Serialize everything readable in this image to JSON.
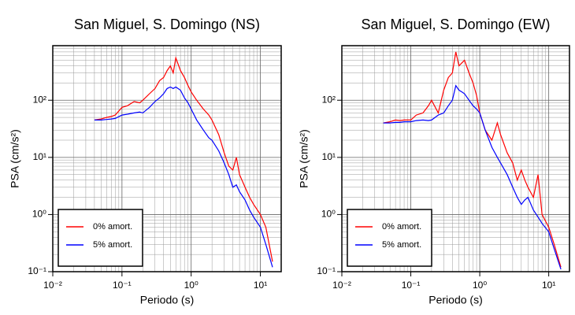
{
  "chart_data": [
    {
      "type": "line",
      "title": "San Miguel, S. Domingo (NS)",
      "x_label": "Periodo (s)",
      "y_label": "PSA (cm/s²)",
      "log_x": true,
      "log_y": true,
      "grid": true,
      "legend": "lower left",
      "xlim": [
        0.01,
        20
      ],
      "ylim": [
        0.1,
        900
      ],
      "xticks": [
        {
          "value": 0.01,
          "label": "10⁻²"
        },
        {
          "value": 0.1,
          "label": "10⁻¹"
        },
        {
          "value": 1,
          "label": "10⁰"
        },
        {
          "value": 10,
          "label": "10¹"
        }
      ],
      "yticks": [
        {
          "value": 0.1,
          "label": "10⁻¹"
        },
        {
          "value": 1,
          "label": "10⁰"
        },
        {
          "value": 10,
          "label": "10¹"
        },
        {
          "value": 100,
          "label": "10²"
        }
      ],
      "xminorticks": [
        0.02,
        0.03,
        0.04,
        0.05,
        0.06,
        0.07,
        0.08,
        0.09,
        0.2,
        0.3,
        0.4,
        0.5,
        0.6,
        0.7,
        0.8,
        0.9,
        2,
        3,
        4,
        5,
        6,
        7,
        8,
        9
      ],
      "yminorticks": [
        0.2,
        0.3,
        0.4,
        0.5,
        0.6,
        0.7,
        0.8,
        0.9,
        2,
        3,
        4,
        5,
        6,
        7,
        8,
        9,
        20,
        30,
        40,
        50,
        60,
        70,
        80,
        90,
        200,
        300,
        400,
        500,
        600,
        700,
        800
      ],
      "x": [
        0.04,
        0.05,
        0.06,
        0.07,
        0.08,
        0.1,
        0.12,
        0.15,
        0.18,
        0.2,
        0.25,
        0.3,
        0.35,
        0.4,
        0.45,
        0.5,
        0.55,
        0.6,
        0.7,
        0.8,
        0.9,
        1.0,
        1.2,
        1.5,
        1.8,
        2,
        2.5,
        3,
        3.5,
        4,
        4.5,
        5,
        6,
        7,
        8,
        10,
        12,
        15
      ],
      "series": [
        {
          "name": "0% amort.",
          "color": "#ff0000",
          "values": [
            45,
            47,
            50,
            52,
            55,
            75,
            80,
            95,
            90,
            100,
            130,
            160,
            220,
            250,
            330,
            400,
            300,
            550,
            330,
            250,
            180,
            140,
            100,
            70,
            55,
            45,
            25,
            12,
            7,
            6,
            10,
            5,
            3,
            2,
            1.5,
            1.0,
            0.6,
            0.15
          ]
        },
        {
          "name": "5% amort.",
          "color": "#0000ff",
          "values": [
            45,
            45,
            46,
            47,
            48,
            55,
            57,
            60,
            62,
            60,
            75,
            95,
            110,
            130,
            160,
            170,
            160,
            170,
            150,
            110,
            90,
            70,
            45,
            30,
            22,
            20,
            13,
            8,
            5,
            3,
            3.3,
            2.5,
            1.8,
            1.2,
            0.9,
            0.6,
            0.3,
            0.12
          ]
        }
      ]
    },
    {
      "type": "line",
      "title": "San Miguel, S. Domingo (EW)",
      "x_label": "Periodo (s)",
      "y_label": "PSA (cm/s²)",
      "log_x": true,
      "log_y": true,
      "grid": true,
      "legend": "lower left",
      "xlim": [
        0.01,
        20
      ],
      "ylim": [
        0.1,
        900
      ],
      "xticks": [
        {
          "value": 0.01,
          "label": "10⁻²"
        },
        {
          "value": 0.1,
          "label": "10⁻¹"
        },
        {
          "value": 1,
          "label": "10⁰"
        },
        {
          "value": 10,
          "label": "10¹"
        }
      ],
      "yticks": [
        {
          "value": 0.1,
          "label": "10⁻¹"
        },
        {
          "value": 1,
          "label": "10⁰"
        },
        {
          "value": 10,
          "label": "10¹"
        },
        {
          "value": 100,
          "label": "10²"
        }
      ],
      "xminorticks": [
        0.02,
        0.03,
        0.04,
        0.05,
        0.06,
        0.07,
        0.08,
        0.09,
        0.2,
        0.3,
        0.4,
        0.5,
        0.6,
        0.7,
        0.8,
        0.9,
        2,
        3,
        4,
        5,
        6,
        7,
        8,
        9
      ],
      "yminorticks": [
        0.2,
        0.3,
        0.4,
        0.5,
        0.6,
        0.7,
        0.8,
        0.9,
        2,
        3,
        4,
        5,
        6,
        7,
        8,
        9,
        20,
        30,
        40,
        50,
        60,
        70,
        80,
        90,
        200,
        300,
        400,
        500,
        600,
        700,
        800
      ],
      "x": [
        0.04,
        0.05,
        0.06,
        0.07,
        0.08,
        0.1,
        0.12,
        0.15,
        0.18,
        0.2,
        0.25,
        0.3,
        0.35,
        0.4,
        0.45,
        0.5,
        0.55,
        0.6,
        0.7,
        0.8,
        0.9,
        1.0,
        1.2,
        1.5,
        1.8,
        2,
        2.5,
        3,
        3.5,
        4,
        4.5,
        5,
        6,
        7,
        8,
        10,
        12,
        15
      ],
      "series": [
        {
          "name": "0% amort.",
          "color": "#ff0000",
          "values": [
            40,
            42,
            45,
            44,
            45,
            45,
            55,
            60,
            80,
            100,
            60,
            150,
            250,
            300,
            700,
            400,
            450,
            500,
            300,
            200,
            120,
            60,
            30,
            20,
            40,
            25,
            12,
            8,
            4,
            6,
            4,
            3,
            2,
            5,
            1,
            0.6,
            0.3,
            0.12
          ]
        },
        {
          "name": "5% amort.",
          "color": "#0000ff",
          "values": [
            40,
            40,
            41,
            41,
            42,
            42,
            44,
            45,
            44,
            45,
            55,
            60,
            80,
            100,
            180,
            150,
            140,
            130,
            100,
            80,
            70,
            60,
            30,
            15,
            10,
            8,
            5,
            3,
            2,
            1.5,
            1.8,
            2,
            1.2,
            0.9,
            0.7,
            0.5,
            0.25,
            0.11
          ]
        }
      ]
    }
  ]
}
